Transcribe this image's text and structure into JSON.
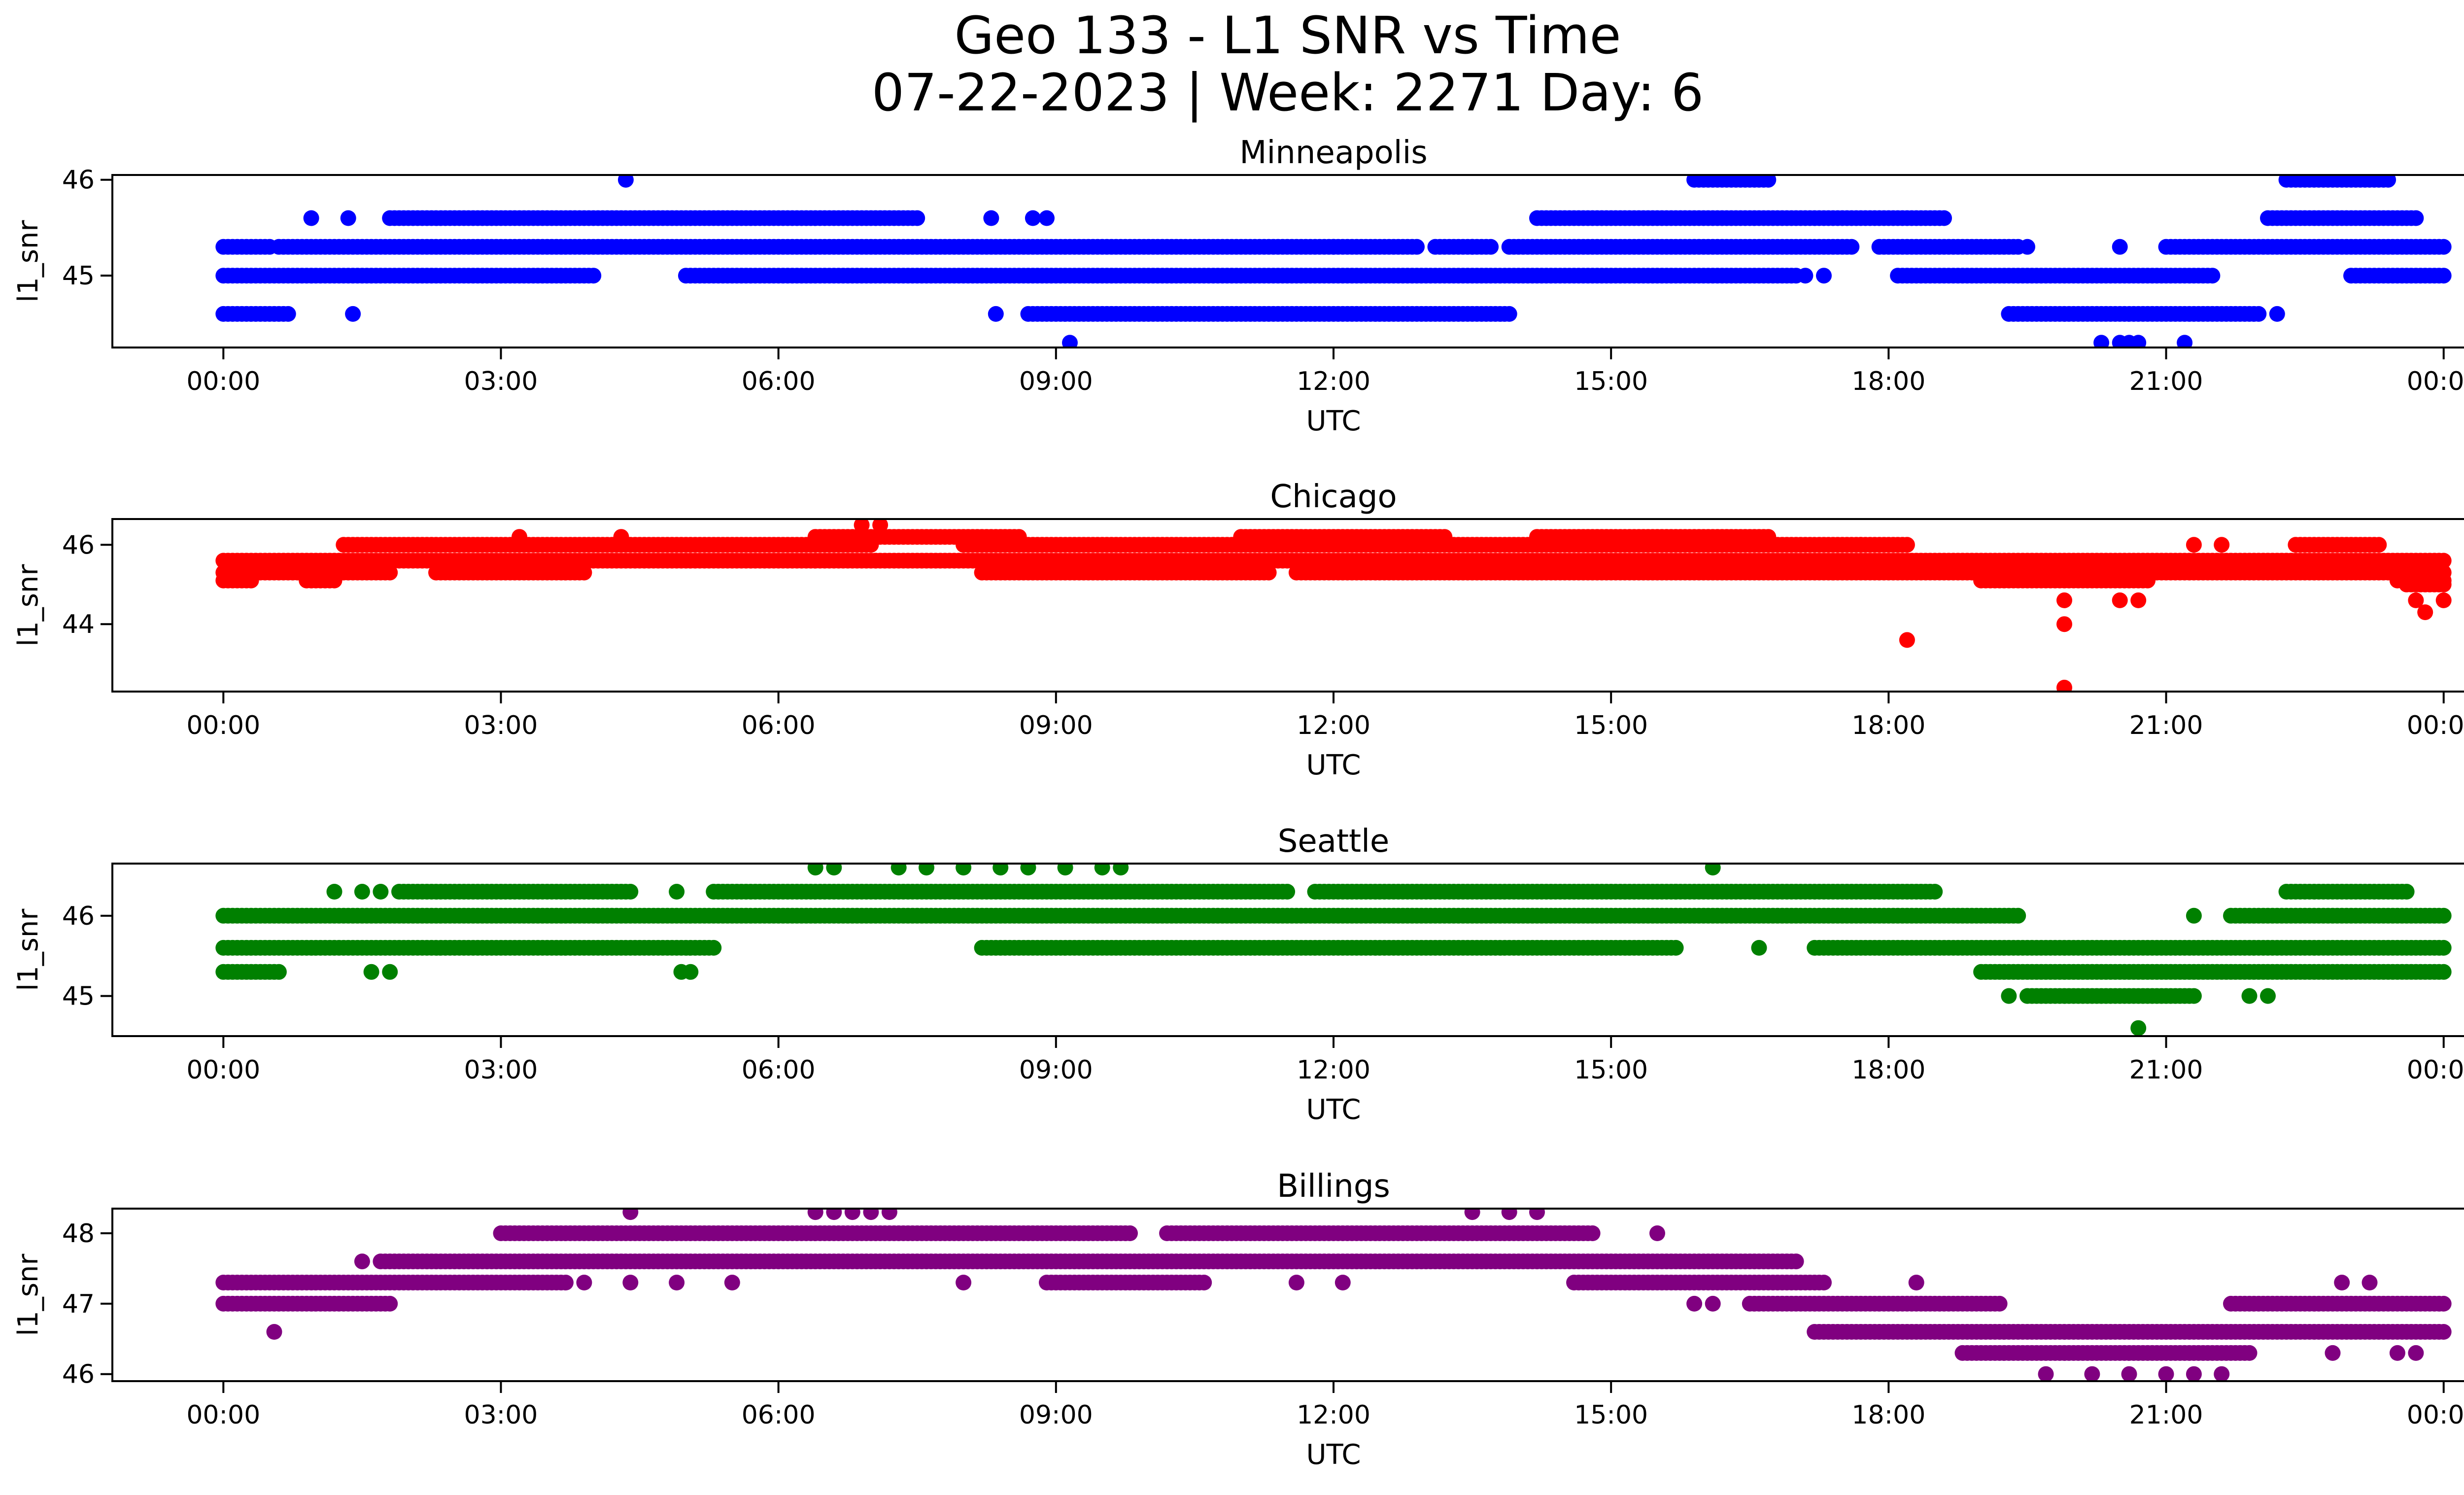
{
  "figure": {
    "title_line1": "Geo 133 - L1 SNR vs Time",
    "title_line2": "07-22-2023 | Week: 2271 Day: 6"
  },
  "chart_data": [
    {
      "type": "scatter",
      "title": "Minneapolis",
      "xlabel": "UTC",
      "ylabel": "l1_snr",
      "color": "#0000ff",
      "x_unit": "hours",
      "xlim": [
        -1.2,
        25.2
      ],
      "ylim": [
        44.25,
        46.05
      ],
      "x_ticks": [
        0,
        3,
        6,
        9,
        12,
        15,
        18,
        21,
        24
      ],
      "x_tick_labels": [
        "00:00",
        "03:00",
        "06:00",
        "09:00",
        "12:00",
        "15:00",
        "18:00",
        "21:00",
        "00:00"
      ],
      "y_ticks": [
        45,
        46
      ],
      "y_tick_labels": [
        "45",
        "46"
      ],
      "series": [
        {
          "y": 45.3,
          "spans": [
            [
              0.0,
              0.5
            ],
            [
              0.6,
              12.9
            ],
            [
              13.1,
              13.7
            ],
            [
              13.9,
              17.6
            ],
            [
              17.9,
              19.4
            ],
            [
              21.0,
              24.0
            ]
          ]
        },
        {
          "y": 45.0,
          "spans": [
            [
              0.0,
              4.0
            ],
            [
              5.0,
              17.0
            ],
            [
              18.1,
              21.5
            ],
            [
              23.0,
              24.0
            ]
          ]
        },
        {
          "y": 45.6,
          "spans": [
            [
              1.8,
              7.5
            ],
            [
              14.2,
              18.6
            ],
            [
              22.1,
              23.7
            ]
          ]
        },
        {
          "y": 44.6,
          "spans": [
            [
              0.0,
              0.7
            ],
            [
              8.7,
              13.9
            ],
            [
              19.3,
              22.0
            ]
          ]
        },
        {
          "y": 46.0,
          "spans": [
            [
              15.9,
              16.7
            ],
            [
              22.3,
              23.4
            ]
          ]
        }
      ],
      "points": [
        [
          0.95,
          45.6
        ],
        [
          1.35,
          45.6
        ],
        [
          1.4,
          44.6
        ],
        [
          4.35,
          46.0
        ],
        [
          8.3,
          45.6
        ],
        [
          8.75,
          45.6
        ],
        [
          8.9,
          45.6
        ],
        [
          8.35,
          44.6
        ],
        [
          9.15,
          44.3
        ],
        [
          12.0,
          45.3
        ],
        [
          13.5,
          45.3
        ],
        [
          17.1,
          45.0
        ],
        [
          17.3,
          45.0
        ],
        [
          19.5,
          45.3
        ],
        [
          20.5,
          45.3
        ],
        [
          20.3,
          44.3
        ],
        [
          20.5,
          44.3
        ],
        [
          20.6,
          44.3
        ],
        [
          20.7,
          44.3
        ],
        [
          21.2,
          44.3
        ],
        [
          22.2,
          44.6
        ]
      ]
    },
    {
      "type": "scatter",
      "title": "Chicago",
      "xlabel": "UTC",
      "ylabel": "l1_snr",
      "color": "#ff0000",
      "x_unit": "hours",
      "xlim": [
        -1.2,
        25.2
      ],
      "ylim": [
        42.3,
        46.65
      ],
      "x_ticks": [
        0,
        3,
        6,
        9,
        12,
        15,
        18,
        21,
        24
      ],
      "x_tick_labels": [
        "00:00",
        "03:00",
        "06:00",
        "09:00",
        "12:00",
        "15:00",
        "18:00",
        "21:00",
        "00:00"
      ],
      "y_ticks": [
        44,
        46
      ],
      "y_tick_labels": [
        "44",
        "46"
      ],
      "series": [
        {
          "y": 45.6,
          "spans": [
            [
              0.0,
              24.0
            ]
          ]
        },
        {
          "y": 45.3,
          "spans": [
            [
              0.0,
              1.8
            ],
            [
              2.3,
              3.9
            ],
            [
              8.2,
              11.3
            ],
            [
              11.6,
              17.4
            ],
            [
              17.4,
              24.0
            ]
          ]
        },
        {
          "y": 46.0,
          "spans": [
            [
              1.3,
              7.0
            ],
            [
              8.0,
              17.7
            ],
            [
              17.7,
              18.2
            ],
            [
              22.4,
              23.3
            ]
          ]
        },
        {
          "y": 46.2,
          "spans": [
            [
              6.4,
              8.6
            ],
            [
              11.0,
              13.2
            ],
            [
              14.2,
              16.7
            ]
          ]
        },
        {
          "y": 45.1,
          "spans": [
            [
              0.0,
              0.3
            ],
            [
              0.9,
              1.2
            ],
            [
              19.0,
              20.8
            ],
            [
              23.5,
              24.0
            ]
          ]
        },
        {
          "y": 45.0,
          "spans": [
            [
              23.6,
              24.0
            ]
          ]
        }
      ],
      "points": [
        [
          6.9,
          46.5
        ],
        [
          7.1,
          46.5
        ],
        [
          18.2,
          43.6
        ],
        [
          19.9,
          44.6
        ],
        [
          19.9,
          44.0
        ],
        [
          19.9,
          42.4
        ],
        [
          20.5,
          44.6
        ],
        [
          20.7,
          44.6
        ],
        [
          23.7,
          44.6
        ],
        [
          23.8,
          44.3
        ],
        [
          24.0,
          44.6
        ],
        [
          4.3,
          46.2
        ],
        [
          3.2,
          46.2
        ],
        [
          21.3,
          46.0
        ],
        [
          21.6,
          46.0
        ]
      ]
    },
    {
      "type": "scatter",
      "title": "Seattle",
      "xlabel": "UTC",
      "ylabel": "l1_snr",
      "color": "#008000",
      "x_unit": "hours",
      "xlim": [
        -1.2,
        25.2
      ],
      "ylim": [
        44.5,
        46.65
      ],
      "x_ticks": [
        0,
        3,
        6,
        9,
        12,
        15,
        18,
        21,
        24
      ],
      "x_tick_labels": [
        "00:00",
        "03:00",
        "06:00",
        "09:00",
        "12:00",
        "15:00",
        "18:00",
        "21:00",
        "00:00"
      ],
      "y_ticks": [
        45,
        46
      ],
      "y_tick_labels": [
        "45",
        "46"
      ],
      "series": [
        {
          "y": 46.0,
          "spans": [
            [
              0.0,
              19.4
            ],
            [
              21.7,
              24.0
            ]
          ]
        },
        {
          "y": 46.3,
          "spans": [
            [
              1.9,
              4.4
            ],
            [
              5.3,
              11.5
            ],
            [
              11.8,
              15.7
            ],
            [
              15.7,
              18.5
            ],
            [
              22.3,
              23.6
            ]
          ]
        },
        {
          "y": 45.6,
          "spans": [
            [
              0.0,
              5.3
            ],
            [
              8.2,
              15.7
            ],
            [
              17.2,
              24.0
            ]
          ]
        },
        {
          "y": 45.3,
          "spans": [
            [
              0.0,
              0.6
            ],
            [
              19.0,
              24.0
            ]
          ]
        },
        {
          "y": 45.0,
          "spans": [
            [
              19.5,
              21.3
            ]
          ]
        }
      ],
      "points": [
        [
          1.2,
          46.3
        ],
        [
          1.5,
          46.3
        ],
        [
          1.7,
          46.3
        ],
        [
          4.9,
          46.3
        ],
        [
          1.6,
          45.3
        ],
        [
          1.8,
          45.3
        ],
        [
          4.95,
          45.3
        ],
        [
          5.05,
          45.3
        ],
        [
          6.4,
          46.6
        ],
        [
          6.6,
          46.6
        ],
        [
          7.3,
          46.6
        ],
        [
          7.6,
          46.6
        ],
        [
          8.0,
          46.6
        ],
        [
          8.4,
          46.6
        ],
        [
          8.7,
          46.6
        ],
        [
          9.1,
          46.6
        ],
        [
          9.5,
          46.6
        ],
        [
          9.7,
          46.6
        ],
        [
          16.1,
          46.6
        ],
        [
          16.6,
          45.6
        ],
        [
          19.3,
          45.0
        ],
        [
          21.9,
          45.0
        ],
        [
          22.1,
          45.0
        ],
        [
          20.7,
          44.6
        ],
        [
          21.3,
          46.0
        ]
      ]
    },
    {
      "type": "scatter",
      "title": "Billings",
      "xlabel": "UTC",
      "ylabel": "l1_snr",
      "color": "#800080",
      "x_unit": "hours",
      "xlim": [
        -1.2,
        25.2
      ],
      "ylim": [
        45.9,
        48.35
      ],
      "x_ticks": [
        0,
        3,
        6,
        9,
        12,
        15,
        18,
        21,
        24
      ],
      "x_tick_labels": [
        "00:00",
        "03:00",
        "06:00",
        "09:00",
        "12:00",
        "15:00",
        "18:00",
        "21:00",
        "00:00"
      ],
      "y_ticks": [
        46,
        47,
        48
      ],
      "y_tick_labels": [
        "46",
        "47",
        "48"
      ],
      "series": [
        {
          "y": 47.3,
          "spans": [
            [
              0.0,
              3.7
            ],
            [
              8.9,
              10.6
            ],
            [
              14.6,
              17.3
            ]
          ]
        },
        {
          "y": 47.0,
          "spans": [
            [
              0.0,
              1.8
            ],
            [
              16.5,
              19.2
            ],
            [
              21.7,
              24.0
            ]
          ]
        },
        {
          "y": 47.6,
          "spans": [
            [
              1.7,
              17.0
            ]
          ]
        },
        {
          "y": 48.0,
          "spans": [
            [
              3.0,
              9.8
            ],
            [
              10.2,
              14.8
            ]
          ]
        },
        {
          "y": 46.6,
          "spans": [
            [
              17.2,
              24.0
            ]
          ]
        },
        {
          "y": 46.3,
          "spans": [
            [
              18.8,
              21.9
            ]
          ]
        }
      ],
      "points": [
        [
          0.55,
          46.6
        ],
        [
          1.5,
          47.6
        ],
        [
          4.4,
          48.3
        ],
        [
          6.4,
          48.3
        ],
        [
          6.6,
          48.3
        ],
        [
          6.8,
          48.3
        ],
        [
          7.0,
          48.3
        ],
        [
          7.2,
          48.3
        ],
        [
          13.5,
          48.3
        ],
        [
          13.9,
          48.3
        ],
        [
          14.2,
          48.3
        ],
        [
          15.5,
          48.0
        ],
        [
          8.0,
          47.3
        ],
        [
          11.6,
          47.3
        ],
        [
          12.1,
          47.3
        ],
        [
          3.9,
          47.3
        ],
        [
          4.4,
          47.3
        ],
        [
          4.9,
          47.3
        ],
        [
          5.5,
          47.3
        ],
        [
          15.9,
          47.0
        ],
        [
          16.1,
          47.0
        ],
        [
          19.7,
          46.0
        ],
        [
          20.2,
          46.0
        ],
        [
          20.6,
          46.0
        ],
        [
          21.0,
          46.0
        ],
        [
          21.3,
          46.0
        ],
        [
          21.6,
          46.0
        ],
        [
          18.3,
          47.3
        ],
        [
          22.9,
          47.3
        ],
        [
          23.2,
          47.3
        ],
        [
          22.8,
          46.3
        ],
        [
          23.5,
          46.3
        ],
        [
          23.7,
          46.3
        ]
      ]
    }
  ]
}
